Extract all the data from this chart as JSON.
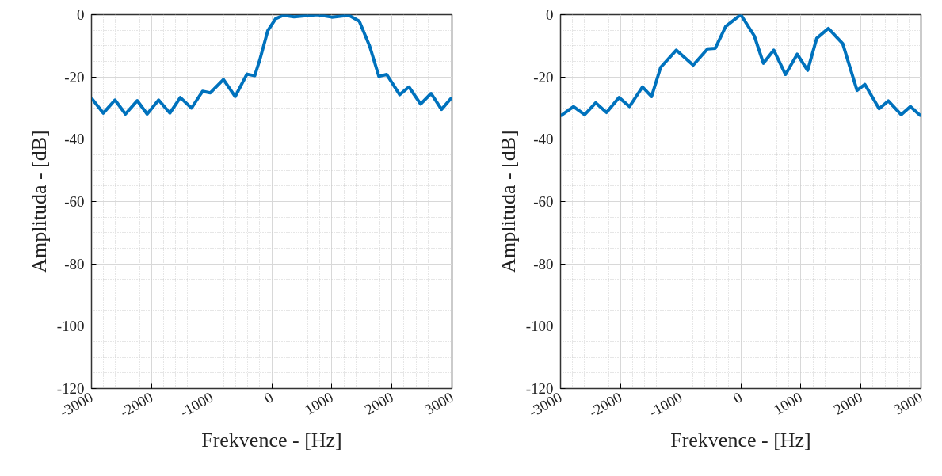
{
  "chart_data": [
    {
      "type": "line",
      "xlabel": "Frekvence - [Hz]",
      "ylabel": "Amplituda - [dB]",
      "xlim": [
        -3000,
        3000
      ],
      "ylim": [
        -120,
        0
      ],
      "xticks": [
        -3000,
        -2000,
        -1000,
        0,
        1000,
        2000,
        3000
      ],
      "yticks": [
        -120,
        -100,
        -80,
        -60,
        -40,
        -20,
        0
      ],
      "grid": true,
      "x": [
        -3000,
        -2804,
        -2609,
        -2435,
        -2239,
        -2074,
        -1883,
        -1696,
        -1522,
        -1335,
        -1152,
        -1022,
        -804,
        -609,
        -413,
        -283,
        -196,
        -65,
        65,
        196,
        370,
        543,
        761,
        1000,
        1283,
        1457,
        1630,
        1783,
        1913,
        2130,
        2283,
        2478,
        2652,
        2826,
        2978,
        3000
      ],
      "series": [
        {
          "color": "#0072bd",
          "values": [
            -26.8,
            -31.6,
            -27.4,
            -31.9,
            -27.6,
            -31.9,
            -27.4,
            -31.6,
            -26.6,
            -30.0,
            -24.6,
            -25.1,
            -20.8,
            -26.3,
            -19.1,
            -19.6,
            -14.3,
            -5.1,
            -1.3,
            -0.2,
            -0.7,
            -0.4,
            0,
            -0.8,
            -0.2,
            -2.1,
            -10.1,
            -19.8,
            -19.2,
            -25.7,
            -23.2,
            -28.7,
            -25.3,
            -30.4,
            -27.0,
            -26.8
          ]
        }
      ]
    },
    {
      "type": "line",
      "xlabel": "Frekvence - [Hz]",
      "ylabel": "Amplituda - [dB]",
      "xlim": [
        -3000,
        3000
      ],
      "ylim": [
        -120,
        0
      ],
      "xticks": [
        -3000,
        -2000,
        -1000,
        0,
        1000,
        2000,
        3000
      ],
      "yticks": [
        -120,
        -100,
        -80,
        -60,
        -40,
        -20,
        0
      ],
      "grid": true,
      "x": [
        -3000,
        -2784,
        -2597,
        -2416,
        -2234,
        -2026,
        -1853,
        -1636,
        -1485,
        -1333,
        -1074,
        -792,
        -554,
        -424,
        -251,
        0,
        225,
        377,
        550,
        745,
        939,
        1113,
        1264,
        1459,
        1697,
        1935,
        2065,
        2303,
        2455,
        2671,
        2823,
        2961,
        3000
      ],
      "series": [
        {
          "color": "#0072bd",
          "values": [
            -32.5,
            -29.5,
            -32.1,
            -28.3,
            -31.4,
            -26.6,
            -29.5,
            -23.2,
            -26.3,
            -16.9,
            -11.4,
            -16.2,
            -11.0,
            -10.8,
            -3.8,
            0,
            -6.8,
            -15.6,
            -11.4,
            -19.2,
            -12.7,
            -17.9,
            -7.6,
            -4.4,
            -9.3,
            -24.3,
            -22.4,
            -30.2,
            -27.7,
            -32.1,
            -29.5,
            -31.9,
            -32.5
          ]
        }
      ]
    }
  ]
}
